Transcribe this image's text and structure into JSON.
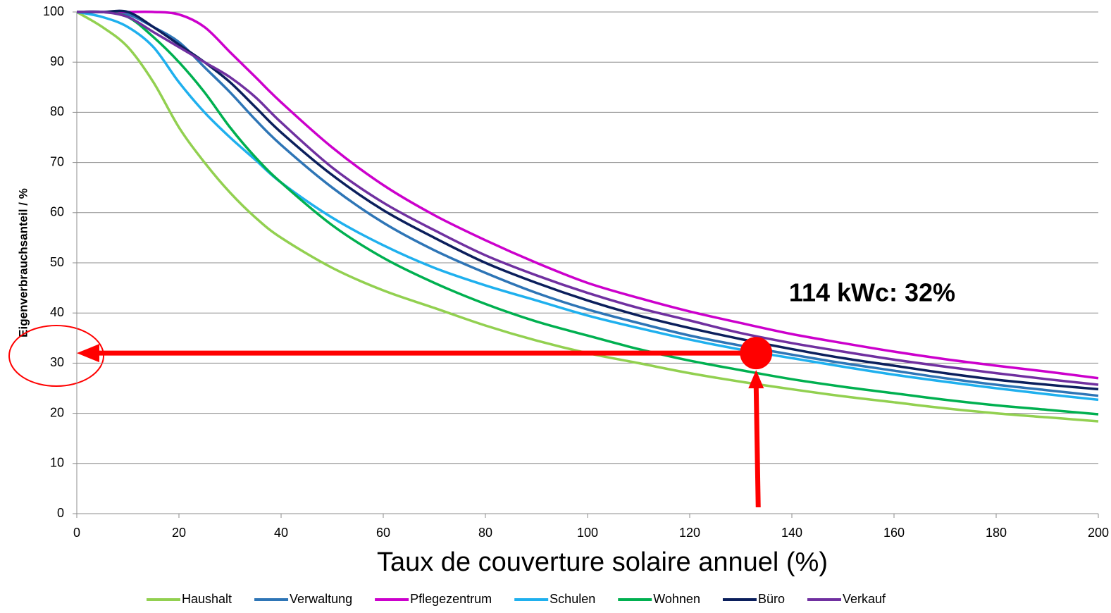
{
  "chart_data": {
    "type": "line",
    "x_label": "Taux de couverture solaire annuel (%)",
    "y_label": "Eigenverbrauchsanteil / %",
    "annotation": "114 kWc: 32%",
    "marker": {
      "x": 133,
      "y": 32,
      "color": "#ff0000"
    },
    "x": [
      0,
      5,
      10,
      15,
      20,
      25,
      30,
      35,
      40,
      50,
      60,
      70,
      80,
      90,
      100,
      110,
      120,
      130,
      140,
      150,
      160,
      170,
      180,
      190,
      200
    ],
    "series": [
      {
        "name": "Haushalt",
        "color": "#92d050",
        "values": [
          100,
          97,
          93,
          86,
          77,
          70,
          64,
          59,
          55,
          49,
          44.5,
          41,
          37.5,
          34.5,
          32,
          30,
          28,
          26.3,
          24.8,
          23.4,
          22.2,
          21,
          20,
          19.2,
          18.4
        ]
      },
      {
        "name": "Verwaltung",
        "color": "#2e75b6",
        "values": [
          100,
          100,
          99.5,
          97,
          94,
          89,
          84,
          78.5,
          73.5,
          65,
          58,
          52.5,
          48,
          44,
          40.7,
          38,
          35.5,
          33.5,
          31.7,
          30,
          28.5,
          27,
          25.7,
          24.6,
          23.5
        ]
      },
      {
        "name": "Pflegezentrum",
        "color": "#cc00cc",
        "values": [
          100,
          100,
          100,
          100,
          99.5,
          97,
          92,
          87,
          82,
          73,
          65.5,
          59.5,
          54.5,
          50,
          46,
          43,
          40.3,
          38,
          35.8,
          34,
          32.3,
          30.8,
          29.5,
          28.3,
          27
        ]
      },
      {
        "name": "Schulen",
        "color": "#1fb0ee",
        "values": [
          100,
          99,
          97,
          93,
          86,
          80,
          75,
          70.5,
          66,
          59,
          53.5,
          49,
          45.5,
          42.5,
          39.5,
          37,
          34.7,
          32.7,
          31,
          29.3,
          27.7,
          26.3,
          25,
          23.8,
          22.7
        ]
      },
      {
        "name": "Wohnen",
        "color": "#00b050",
        "values": [
          100,
          100,
          99,
          95,
          90,
          84,
          77,
          71,
          66,
          57.5,
          51,
          46,
          41.8,
          38.3,
          35.5,
          32.8,
          30.5,
          28.6,
          26.8,
          25.3,
          24,
          22.7,
          21.6,
          20.7,
          19.8
        ]
      },
      {
        "name": "Büro",
        "color": "#0b1f5c",
        "values": [
          100,
          100,
          100,
          97,
          93.5,
          90,
          86,
          81,
          76,
          67.5,
          60.5,
          55,
          50,
          46,
          42.5,
          39.5,
          37,
          34.8,
          32.8,
          31,
          29.5,
          28,
          26.7,
          25.7,
          24.8
        ]
      },
      {
        "name": "Verkauf",
        "color": "#7030a0",
        "values": [
          100,
          100,
          99,
          96,
          93,
          90,
          87,
          83,
          78,
          69,
          62,
          56.5,
          51.5,
          47.5,
          44,
          41,
          38.5,
          36,
          34,
          32.3,
          30.7,
          29.3,
          28,
          26.8,
          25.7
        ]
      }
    ],
    "xlim": [
      0,
      200
    ],
    "ylim": [
      0,
      100
    ],
    "xticks": [
      0,
      20,
      40,
      60,
      80,
      100,
      120,
      140,
      160,
      180,
      200
    ],
    "yticks": [
      0,
      10,
      20,
      30,
      40,
      50,
      60,
      70,
      80,
      90,
      100
    ],
    "grid": true,
    "legend": "bottom"
  }
}
